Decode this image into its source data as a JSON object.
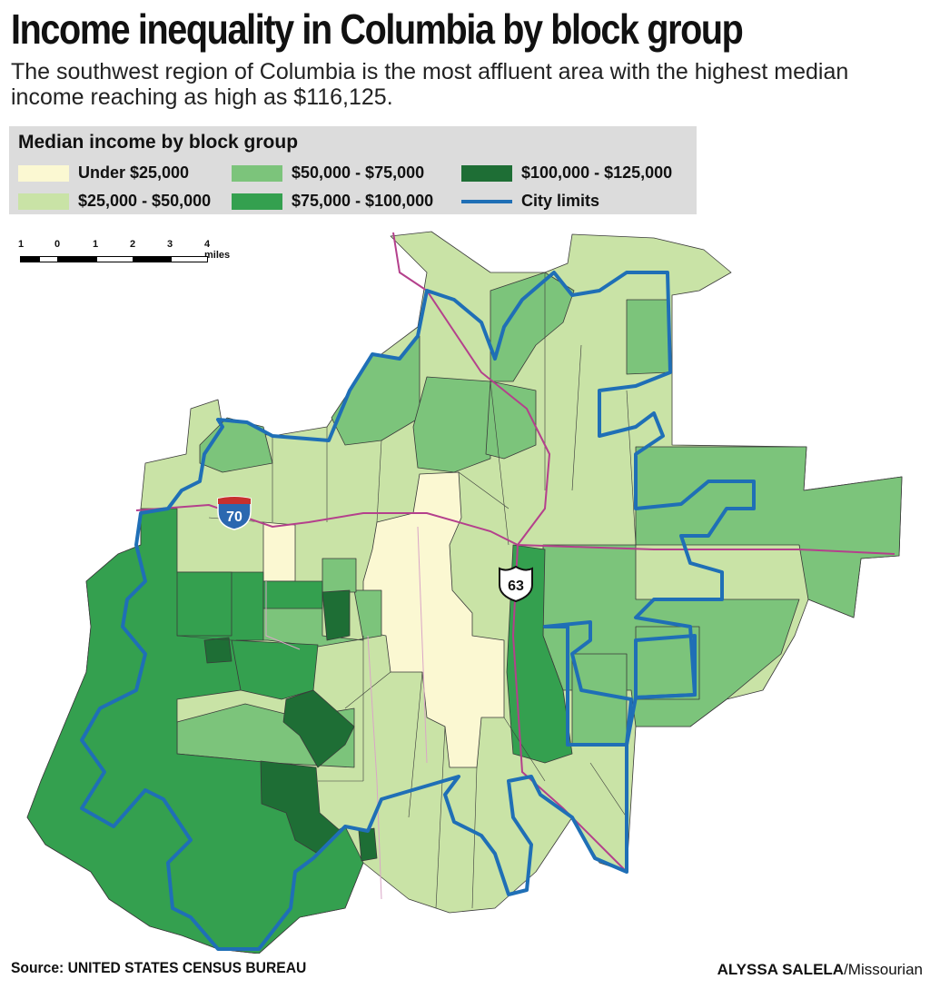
{
  "header": {
    "title": "Income inequality in Columbia by block group",
    "subtitle": "The southwest region of Columbia is the most affluent area with the highest median income reaching as high as $116,125."
  },
  "legend": {
    "title": "Median income by block group",
    "items": [
      {
        "label": "Under $25,000",
        "color": "#fbf8d2"
      },
      {
        "label": "$25,000 - $50,000",
        "color": "#c9e3a6"
      },
      {
        "label": "$50,000 - $75,000",
        "color": "#7cc47b"
      },
      {
        "label": "$75,000 - $100,000",
        "color": "#34a04f"
      },
      {
        "label": "$100,000 - $125,000",
        "color": "#1e6e35"
      }
    ],
    "city_limits_label": "City limits",
    "city_limits_color": "#1f6fb6"
  },
  "scale_bar": {
    "labels": [
      "1",
      "0",
      "1",
      "2",
      "3",
      "4 miles"
    ]
  },
  "map": {
    "highway_labels": {
      "interstate": "70",
      "us_route": "63"
    },
    "highway_color": "#b4408c"
  },
  "footer": {
    "source": "Source: UNITED STATES CENSUS BUREAU",
    "credit_name": "ALYSSA SALELA",
    "credit_org": "/Missourian"
  }
}
